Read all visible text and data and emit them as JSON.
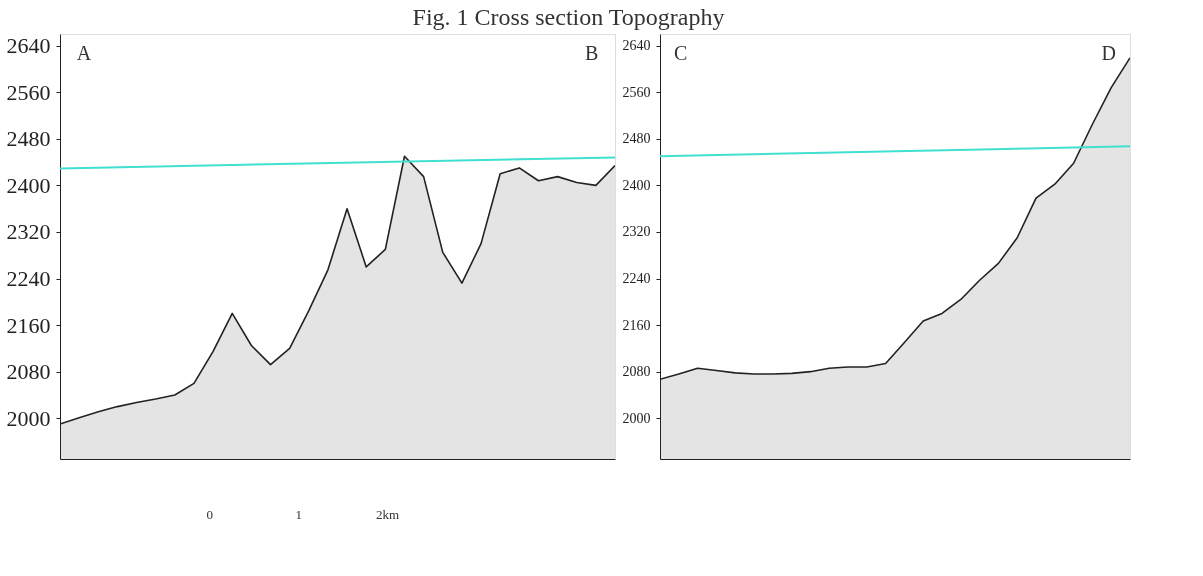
{
  "chart_data": [
    {
      "type": "area",
      "title": "Fig. 1 Cross section Topography",
      "categories": [
        null,
        null,
        null,
        null,
        null,
        null,
        null,
        null,
        null,
        null,
        null,
        null,
        null,
        null,
        null,
        null,
        null,
        null,
        null,
        null,
        null,
        null,
        null,
        null,
        null,
        null,
        null,
        null,
        null,
        null
      ],
      "series": [
        {
          "color": "#222222",
          "values": [
            1990,
            2001,
            2011,
            2020,
            2027,
            2033,
            2040,
            2060,
            2115,
            2180,
            2125,
            2092,
            2120,
            2185,
            2255,
            2360,
            2260,
            2290,
            2450,
            2415,
            2285,
            2232,
            2300,
            2420,
            2430,
            2408,
            2415,
            2405,
            2400,
            2434
          ]
        },
        {
          "type": "line",
          "color": "#40e0d0",
          "values": [
            2429,
            null,
            null,
            null,
            null,
            null,
            null,
            null,
            null,
            null,
            null,
            null,
            null,
            null,
            null,
            null,
            null,
            null,
            null,
            null,
            null,
            null,
            null,
            null,
            null,
            null,
            null,
            null,
            null,
            2448
          ]
        }
      ],
      "annotations": [
        "A",
        "B",
        "0",
        "1",
        "2km"
      ],
      "ylim": [
        1930,
        2660
      ],
      "yticks": [
        2000,
        2080,
        2160,
        2240,
        2320,
        2400,
        2480,
        2560,
        2640
      ],
      "tick_labels": "y"
    },
    {
      "type": "area",
      "categories": [
        null,
        null,
        null,
        null,
        null,
        null,
        null,
        null,
        null,
        null,
        null,
        null,
        null,
        null,
        null,
        null,
        null,
        null,
        null,
        null,
        null,
        null,
        null,
        null,
        null,
        null
      ],
      "series": [
        {
          "color": "#222222",
          "values": [
            2067,
            2076,
            2086,
            2082,
            2078,
            2076,
            2076,
            2077,
            2080,
            2086,
            2088,
            2088,
            2094,
            2130,
            2167,
            2180,
            2204,
            2237,
            2266,
            2310,
            2378,
            2402,
            2438,
            2505,
            2568,
            2619
          ]
        },
        {
          "type": "line",
          "color": "#40e0d0",
          "values": [
            2450,
            null,
            null,
            null,
            null,
            null,
            null,
            null,
            null,
            null,
            null,
            null,
            null,
            null,
            null,
            null,
            null,
            null,
            null,
            null,
            null,
            null,
            null,
            null,
            null,
            2467
          ]
        }
      ],
      "annotations": [
        "C",
        "D"
      ],
      "ylim": [
        1930,
        2660
      ],
      "yticks": [
        2000,
        2080,
        2160,
        2240,
        2320,
        2400,
        2480,
        2560,
        2640
      ],
      "tick_labels": "y"
    }
  ]
}
